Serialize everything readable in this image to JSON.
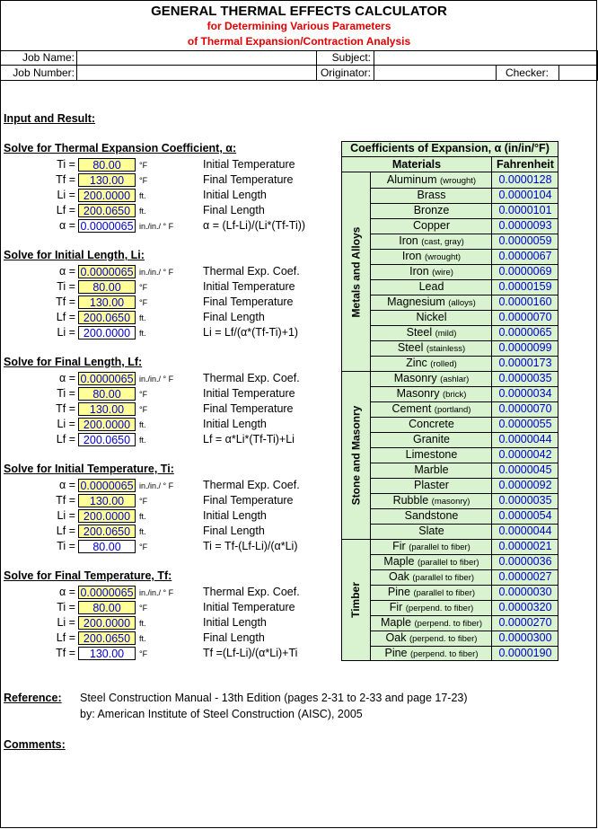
{
  "header": {
    "title": "GENERAL THERMAL EFFECTS CALCULATOR",
    "subtitle1": "for Determining Various Parameters",
    "subtitle2": "of Thermal Expansion/Contraction Analysis",
    "job_name_label": "Job Name:",
    "subject_label": "Subject:",
    "job_number_label": "Job Number:",
    "originator_label": "Originator:",
    "checker_label": "Checker:"
  },
  "input_and_result": "Input and Result:",
  "sections": [
    {
      "title": "Solve for Thermal Expansion Coefficient, α:",
      "rows": [
        {
          "label": "Ti =",
          "value": "80.00",
          "unit": "°F",
          "desc": "Initial Temperature",
          "style": "yellow"
        },
        {
          "label": "Tf =",
          "value": "130.00",
          "unit": "°F",
          "desc": "Final Temperature",
          "style": "yellow"
        },
        {
          "label": "Li =",
          "value": "200.0000",
          "unit": "ft.",
          "desc": "Initial Length",
          "style": "yellow"
        },
        {
          "label": "Lf =",
          "value": "200.0650",
          "unit": "ft.",
          "desc": "Final Length",
          "style": "yellow"
        },
        {
          "label": "α =",
          "value": "0.0000065",
          "unit": "in./in./ ° F",
          "desc": "α = (Lf-Li)/(Li*(Tf-Ti))",
          "style": "result"
        }
      ]
    },
    {
      "title": "Solve for Initial Length, Li:",
      "rows": [
        {
          "label": "α =",
          "value": "0.0000065",
          "unit": "in./in./ ° F",
          "desc": "Thermal Exp. Coef.",
          "style": "yellow"
        },
        {
          "label": "Ti =",
          "value": "80.00",
          "unit": "°F",
          "desc": "Initial Temperature",
          "style": "yellow"
        },
        {
          "label": "Tf =",
          "value": "130.00",
          "unit": "°F",
          "desc": "Final Temperature",
          "style": "yellow"
        },
        {
          "label": "Lf =",
          "value": "200.0650",
          "unit": "ft.",
          "desc": "Final Length",
          "style": "yellow"
        },
        {
          "label": "Li =",
          "value": "200.0000",
          "unit": "ft.",
          "desc": "Li = Lf/(α*(Tf-Ti)+1)",
          "style": "result"
        }
      ]
    },
    {
      "title": "Solve for Final Length, Lf:",
      "rows": [
        {
          "label": "α =",
          "value": "0.0000065",
          "unit": "in./in./ ° F",
          "desc": "Thermal Exp. Coef.",
          "style": "yellow"
        },
        {
          "label": "Ti =",
          "value": "80.00",
          "unit": "°F",
          "desc": "Initial Temperature",
          "style": "yellow"
        },
        {
          "label": "Tf =",
          "value": "130.00",
          "unit": "°F",
          "desc": "Final Temperature",
          "style": "yellow"
        },
        {
          "label": "Li =",
          "value": "200.0000",
          "unit": "ft.",
          "desc": "Initial Length",
          "style": "yellow"
        },
        {
          "label": "Lf =",
          "value": "200.0650",
          "unit": "ft.",
          "desc": "Lf = α*Li*(Tf-Ti)+Li",
          "style": "result"
        }
      ]
    },
    {
      "title": "Solve for Initial Temperature, Ti:",
      "rows": [
        {
          "label": "α =",
          "value": "0.0000065",
          "unit": "in./in./ ° F",
          "desc": "Thermal Exp. Coef.",
          "style": "yellow"
        },
        {
          "label": "Tf =",
          "value": "130.00",
          "unit": "°F",
          "desc": "Final Temperature",
          "style": "yellow"
        },
        {
          "label": "Li =",
          "value": "200.0000",
          "unit": "ft.",
          "desc": "Initial Length",
          "style": "yellow"
        },
        {
          "label": "Lf =",
          "value": "200.0650",
          "unit": "ft.",
          "desc": "Final Length",
          "style": "yellow"
        },
        {
          "label": "Ti =",
          "value": "80.00",
          "unit": "°F",
          "desc": "Ti = Tf-(Lf-Li)/(α*Li)",
          "style": "result"
        }
      ]
    },
    {
      "title": "Solve for Final Temperature, Tf:",
      "rows": [
        {
          "label": "α =",
          "value": "0.0000065",
          "unit": "in./in./ ° F",
          "desc": "Thermal Exp. Coef.",
          "style": "yellow"
        },
        {
          "label": "Ti =",
          "value": "80.00",
          "unit": "°F",
          "desc": "Initial Temperature",
          "style": "yellow"
        },
        {
          "label": "Li =",
          "value": "200.0000",
          "unit": "ft.",
          "desc": "Initial Length",
          "style": "yellow"
        },
        {
          "label": "Lf =",
          "value": "200.0650",
          "unit": "ft.",
          "desc": "Final Length",
          "style": "yellow"
        },
        {
          "label": "Tf =",
          "value": "130.00",
          "unit": "°F",
          "desc": "Tf =(Lf-Li)/(α*Li)+Ti",
          "style": "result"
        }
      ]
    }
  ],
  "coef_table": {
    "title": "Coefficients of Expansion, α (in/in/°F)",
    "col_materials": "Materials",
    "col_fahrenheit": "Fahrenheit",
    "groups": [
      {
        "name": "Metals and Alloys",
        "items": [
          {
            "name": "Aluminum",
            "note": "(wrought)",
            "value": "0.0000128"
          },
          {
            "name": "Brass",
            "note": "",
            "value": "0.0000104"
          },
          {
            "name": "Bronze",
            "note": "",
            "value": "0.0000101"
          },
          {
            "name": "Copper",
            "note": "",
            "value": "0.0000093"
          },
          {
            "name": "Iron",
            "note": "(cast, gray)",
            "value": "0.0000059"
          },
          {
            "name": "Iron",
            "note": "(wrought)",
            "value": "0.0000067"
          },
          {
            "name": "Iron",
            "note": "(wire)",
            "value": "0.0000069"
          },
          {
            "name": "Lead",
            "note": "",
            "value": "0.0000159"
          },
          {
            "name": "Magnesium",
            "note": "(alloys)",
            "value": "0.0000160"
          },
          {
            "name": "Nickel",
            "note": "",
            "value": "0.0000070"
          },
          {
            "name": "Steel",
            "note": "(mild)",
            "value": "0.0000065"
          },
          {
            "name": "Steel",
            "note": "(stainless)",
            "value": "0.0000099"
          },
          {
            "name": "Zinc",
            "note": "(rolled)",
            "value": "0.0000173"
          }
        ]
      },
      {
        "name": "Stone and Masonry",
        "items": [
          {
            "name": "Masonry",
            "note": "(ashlar)",
            "value": "0.0000035"
          },
          {
            "name": "Masonry",
            "note": "(brick)",
            "value": "0.0000034"
          },
          {
            "name": "Cement",
            "note": "(portland)",
            "value": "0.0000070"
          },
          {
            "name": "Concrete",
            "note": "",
            "value": "0.0000055"
          },
          {
            "name": "Granite",
            "note": "",
            "value": "0.0000044"
          },
          {
            "name": "Limestone",
            "note": "",
            "value": "0.0000042"
          },
          {
            "name": "Marble",
            "note": "",
            "value": "0.0000045"
          },
          {
            "name": "Plaster",
            "note": "",
            "value": "0.0000092"
          },
          {
            "name": "Rubble",
            "note": "(masonry)",
            "value": "0.0000035"
          },
          {
            "name": "Sandstone",
            "note": "",
            "value": "0.0000054"
          },
          {
            "name": "Slate",
            "note": "",
            "value": "0.0000044"
          }
        ]
      },
      {
        "name": "Timber",
        "items": [
          {
            "name": "Fir",
            "note": "(parallel to fiber)",
            "value": "0.0000021"
          },
          {
            "name": "Maple",
            "note": "(parallel to fiber)",
            "value": "0.0000036"
          },
          {
            "name": "Oak",
            "note": "(parallel to fiber)",
            "value": "0.0000027"
          },
          {
            "name": "Pine",
            "note": "(parallel to fiber)",
            "value": "0.0000030"
          },
          {
            "name": "Fir",
            "note": "(perpend. to fiber)",
            "value": "0.0000320"
          },
          {
            "name": "Maple",
            "note": "(perpend. to fiber)",
            "value": "0.0000270"
          },
          {
            "name": "Oak",
            "note": "(perpend. to fiber)",
            "value": "0.0000300"
          },
          {
            "name": "Pine",
            "note": "(perpend. to fiber)",
            "value": "0.0000190"
          }
        ]
      }
    ]
  },
  "reference": {
    "label": "Reference:",
    "line1": "Steel Construction Manual - 13th Edition (pages 2-31 to 2-33 and page 17-23)",
    "line2": "by: American Institute of Steel Construction (AISC), 2005"
  },
  "comments_label": "Comments:",
  "colors": {
    "input_fill": "#ffff99",
    "result_text": "#0000cc",
    "subtitle": "#e00000",
    "table_bg": "#d9f2d0"
  }
}
